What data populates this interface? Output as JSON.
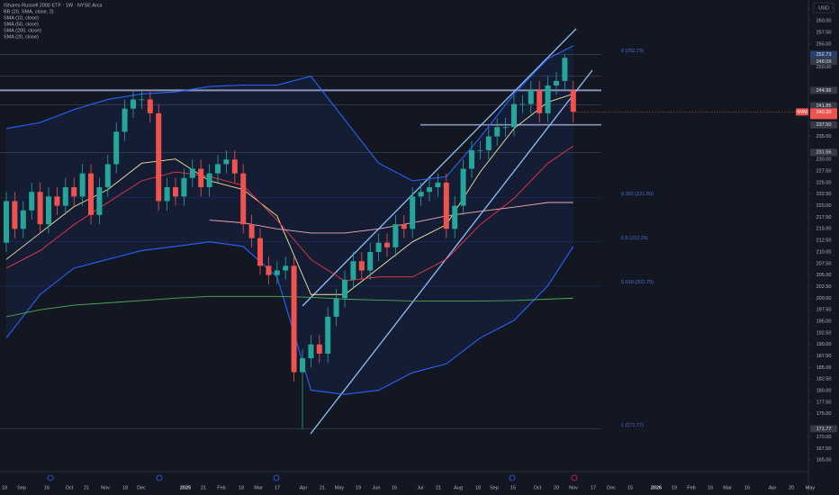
{
  "chart_data": {
    "type": "candlestick",
    "title": "iShares Russell 2000 ETF · 1W · NYSE Arca",
    "legend": [
      "BB (20, SMA, close, 2)",
      "SMA (10, close)",
      "SMA (50, close)",
      "SMA (200, close)",
      "SMA (20, close)"
    ],
    "currency": "USD",
    "symbol": "IWM",
    "last_price": {
      "value": 240.3,
      "label": "240.30"
    },
    "up_color": "#26a69a",
    "down_color": "#ef5350",
    "candles": [
      [
        212,
        223,
        210,
        221
      ],
      [
        221,
        223,
        213,
        215
      ],
      [
        215,
        221,
        213,
        219
      ],
      [
        219,
        225,
        217,
        223
      ],
      [
        223,
        225,
        214,
        216
      ],
      [
        216,
        224,
        214,
        222
      ],
      [
        222,
        224,
        218,
        220
      ],
      [
        220,
        226,
        218,
        224
      ],
      [
        224,
        226,
        220,
        222
      ],
      [
        222,
        229,
        220,
        227
      ],
      [
        227,
        229,
        216,
        218
      ],
      [
        218,
        226,
        216,
        224
      ],
      [
        224,
        231,
        222,
        229
      ],
      [
        229,
        238,
        227,
        236
      ],
      [
        236,
        243,
        234,
        241
      ],
      [
        241,
        245,
        239,
        243
      ],
      [
        243,
        245,
        241,
        243
      ],
      [
        243,
        245,
        238,
        240
      ],
      [
        240,
        242,
        219,
        221
      ],
      [
        221,
        226,
        219,
        224
      ],
      [
        224,
        226,
        220,
        222
      ],
      [
        222,
        228,
        220,
        226
      ],
      [
        226,
        230,
        224,
        228
      ],
      [
        228,
        230,
        222,
        224
      ],
      [
        224,
        229,
        222,
        227
      ],
      [
        227,
        231,
        225,
        229
      ],
      [
        229,
        232,
        227,
        230
      ],
      [
        230,
        232,
        225,
        227
      ],
      [
        227,
        229,
        214,
        216
      ],
      [
        216,
        218,
        211,
        213
      ],
      [
        213,
        215,
        205,
        207
      ],
      [
        207,
        209,
        203,
        205
      ],
      [
        205,
        208,
        203,
        206
      ],
      [
        206,
        209,
        204,
        207
      ],
      [
        207,
        209,
        182,
        184
      ],
      [
        184,
        189,
        171.77,
        187
      ],
      [
        187,
        192,
        185,
        190
      ],
      [
        190,
        192,
        186,
        188
      ],
      [
        188,
        198,
        186,
        196
      ],
      [
        196,
        202,
        194,
        200
      ],
      [
        200,
        206,
        198,
        204
      ],
      [
        204,
        210,
        202,
        208
      ],
      [
        208,
        210,
        204,
        206
      ],
      [
        206,
        212,
        204,
        210
      ],
      [
        210,
        214,
        208,
        212
      ],
      [
        212,
        214,
        209,
        211
      ],
      [
        211,
        218,
        209,
        216
      ],
      [
        216,
        218,
        213,
        215
      ],
      [
        215,
        224,
        213,
        222
      ],
      [
        222,
        225,
        220,
        223
      ],
      [
        223,
        226,
        221,
        224
      ],
      [
        224,
        227,
        222,
        225
      ],
      [
        225,
        227,
        213,
        215
      ],
      [
        215,
        222,
        213,
        220
      ],
      [
        220,
        230,
        218,
        228
      ],
      [
        228,
        234,
        226,
        232
      ],
      [
        232,
        234,
        230,
        232
      ],
      [
        232,
        237,
        230,
        235
      ],
      [
        235,
        239,
        233,
        237
      ],
      [
        237,
        239,
        235,
        237
      ],
      [
        237,
        244,
        235,
        242
      ],
      [
        242,
        244,
        240,
        242
      ],
      [
        242,
        247,
        240,
        245
      ],
      [
        245,
        247,
        238,
        240
      ],
      [
        240,
        248,
        238,
        246
      ],
      [
        246,
        249,
        244,
        247
      ],
      [
        247,
        252.73,
        245,
        252
      ],
      [
        245,
        247,
        238,
        240.3
      ]
    ],
    "indicator_x": [
      0,
      4,
      8,
      12,
      16,
      20,
      24,
      28,
      32,
      36,
      40,
      44,
      48,
      52,
      56,
      60,
      64,
      67
    ],
    "series": [
      {
        "name": "BB (20, SMA, close, 2)",
        "color": "#2962ff",
        "values": [
          236.7,
          238,
          240.8,
          243,
          244.2,
          244.6,
          245.8,
          246.1,
          246.1,
          248,
          238.6,
          229.2,
          225.4,
          226.3,
          234.8,
          244.2,
          251.8,
          254.6
        ]
      },
      {
        "name": "BB (20, SMA, close, 2)",
        "color": "#2962ff",
        "values": [
          191.4,
          200.8,
          206.5,
          208.4,
          210.3,
          211.2,
          212.2,
          211.2,
          204.6,
          180.1,
          179.2,
          180.1,
          183.9,
          185.8,
          191.4,
          195.2,
          202.7,
          211.2
        ]
      },
      {
        "name": "SMA (10, close)",
        "color": "#f2e6a0",
        "values": [
          208.4,
          214.1,
          219.8,
          223.5,
          229.2,
          230.1,
          225.4,
          223.5,
          217.8,
          200.8,
          200.8,
          206.5,
          212.2,
          215.9,
          227.3,
          236.7,
          242.4,
          244.2
        ]
      },
      {
        "name": "SMA (20, close)",
        "color": "#f23645",
        "values": [
          206.5,
          210.3,
          215.9,
          220.7,
          225.4,
          227.3,
          226.3,
          224.4,
          216.9,
          208.4,
          203.7,
          204.6,
          204.6,
          208.4,
          215.9,
          221.6,
          229.2,
          232.9
        ]
      },
      {
        "name": "SMA (50, close)",
        "color": "#f4a8c0",
        "values": [
          null,
          null,
          null,
          null,
          null,
          null,
          216.9,
          216.3,
          215,
          214.1,
          214.1,
          215,
          216.3,
          217.8,
          218.8,
          219.7,
          220.7,
          220.7
        ]
      },
      {
        "name": "SMA (200, close)",
        "color": "#4caf50",
        "values": [
          196,
          197.5,
          198.5,
          199,
          199.5,
          200,
          200.4,
          200.4,
          200.4,
          200.2,
          199.8,
          199.6,
          199.4,
          199.4,
          199.4,
          199.5,
          199.8,
          200
        ]
      }
    ],
    "ylim": [
      162.5,
      264.5
    ],
    "yticks": [
      {
        "value": 262.5,
        "label": "262.50"
      },
      {
        "value": 260,
        "label": "260.00"
      },
      {
        "value": 257.5,
        "label": "257.50"
      },
      {
        "value": 255,
        "label": "255.00"
      },
      {
        "value": 250,
        "label": "250.00"
      },
      {
        "value": 235,
        "label": "235.00"
      },
      {
        "value": 230,
        "label": "230.00"
      },
      {
        "value": 227.5,
        "label": "227.50"
      },
      {
        "value": 225,
        "label": "225.00"
      },
      {
        "value": 222.5,
        "label": "222.50"
      },
      {
        "value": 220,
        "label": "220.00"
      },
      {
        "value": 217.5,
        "label": "217.50"
      },
      {
        "value": 215,
        "label": "215.00"
      },
      {
        "value": 212.5,
        "label": "212.50"
      },
      {
        "value": 210,
        "label": "210.00"
      },
      {
        "value": 207.5,
        "label": "207.50"
      },
      {
        "value": 205,
        "label": "205.00"
      },
      {
        "value": 202.5,
        "label": "202.50"
      },
      {
        "value": 200,
        "label": "200.00"
      },
      {
        "value": 197.5,
        "label": "197.50"
      },
      {
        "value": 195,
        "label": "195.00"
      },
      {
        "value": 192.5,
        "label": "192.50"
      },
      {
        "value": 190,
        "label": "190.00"
      },
      {
        "value": 187.5,
        "label": "187.50"
      },
      {
        "value": 185,
        "label": "185.00"
      },
      {
        "value": 182.5,
        "label": "182.50"
      },
      {
        "value": 180,
        "label": "180.00"
      },
      {
        "value": 177.5,
        "label": "177.50"
      },
      {
        "value": 175,
        "label": "175.00"
      },
      {
        "value": 170,
        "label": "170.00"
      },
      {
        "value": 167.5,
        "label": "167.50"
      },
      {
        "value": 165,
        "label": "165.00"
      }
    ],
    "levels": [
      {
        "value": 252.73,
        "label": "252.73"
      },
      {
        "value": 248.09,
        "label": "248.09"
      },
      {
        "value": 244.96,
        "label": "244.96"
      },
      {
        "value": 241.85,
        "label": "241.85"
      },
      {
        "value": 237.5,
        "label": "237.50"
      },
      {
        "value": 231.55,
        "label": "231.55"
      },
      {
        "value": 171.77,
        "label": "171.77"
      }
    ],
    "fib": [
      {
        "value": 252.73,
        "label": "0 (252.73)"
      },
      {
        "value": 221.8,
        "label": "0.382 (221.80)"
      },
      {
        "value": 212.25,
        "label": "0.5 (212.25)"
      },
      {
        "value": 202.7,
        "label": "0.618 (202.70)"
      },
      {
        "value": 171.77,
        "label": "1 (171.77)"
      }
    ],
    "x_labels": [
      "18",
      "Sep",
      "16",
      "Oct",
      "21",
      "Nov",
      "18",
      "Dec",
      "2025",
      "21",
      "Feb",
      "18",
      "Mar",
      "17",
      "Apr",
      "21",
      "May",
      "19",
      "Jun",
      "16",
      "Jul",
      "21",
      "Aug",
      "18",
      "Sep",
      "15",
      "Oct",
      "20",
      "Nov",
      "17",
      "Dec",
      "15",
      "2026",
      "19",
      "Feb",
      "16",
      "Mar",
      "16",
      "Apr",
      "20",
      "May"
    ]
  }
}
